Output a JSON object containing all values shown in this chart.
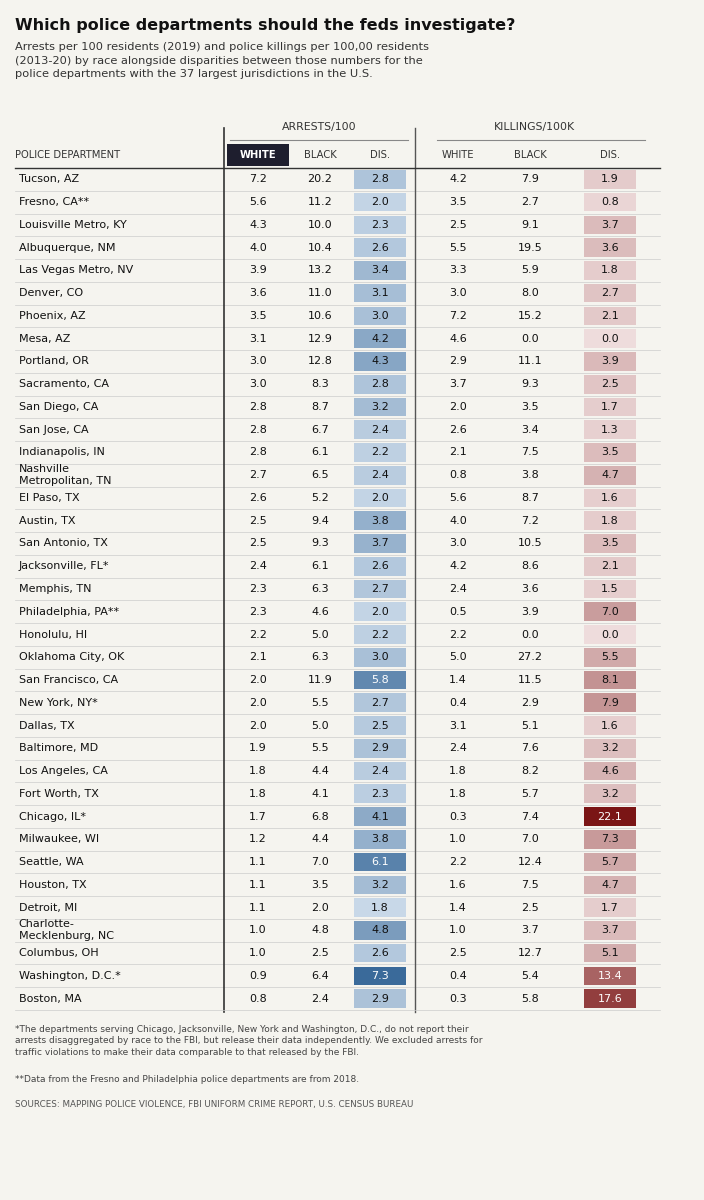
{
  "title": "Which police departments should the feds investigate?",
  "subtitle": "Arrests per 100 residents (2019) and police killings per 100,00 residents\n(2013-20) by race alongside disparities between those numbers for the\npolice departments with the 37 largest jurisdictions in the U.S.",
  "col_header_group1": "ARRESTS/100",
  "col_header_group2": "KILLINGS/100K",
  "row_label": "POLICE DEPARTMENT",
  "footnote1": "*The departments serving Chicago, Jacksonville, New York and Washington, D.C., do not report their\narrests disaggregated by race to the FBI, but release their data independently. We excluded arrests for\ntraffic violations to make their data comparable to that released by the FBI.",
  "footnote2": "**Data from the Fresno and Philadelphia police departments are from 2018.",
  "sources": "SOURCES: MAPPING POLICE VIOLENCE, FBI UNIFORM CRIME REPORT, U.S. CENSUS BUREAU",
  "departments": [
    "Tucson, AZ",
    "Fresno, CA**",
    "Louisville Metro, KY",
    "Albuquerque, NM",
    "Las Vegas Metro, NV",
    "Denver, CO",
    "Phoenix, AZ",
    "Mesa, AZ",
    "Portland, OR",
    "Sacramento, CA",
    "San Diego, CA",
    "San Jose, CA",
    "Indianapolis, IN",
    "Nashville\nMetropolitan, TN",
    "El Paso, TX",
    "Austin, TX",
    "San Antonio, TX",
    "Jacksonville, FL*",
    "Memphis, TN",
    "Philadelphia, PA**",
    "Honolulu, HI",
    "Oklahoma City, OK",
    "San Francisco, CA",
    "New York, NY*",
    "Dallas, TX",
    "Baltimore, MD",
    "Los Angeles, CA",
    "Fort Worth, TX",
    "Chicago, IL*",
    "Milwaukee, WI",
    "Seattle, WA",
    "Houston, TX",
    "Detroit, MI",
    "Charlotte-\nMecklenburg, NC",
    "Columbus, OH",
    "Washington, D.C.*",
    "Boston, MA"
  ],
  "arrests_white": [
    7.2,
    5.6,
    4.3,
    4.0,
    3.9,
    3.6,
    3.5,
    3.1,
    3.0,
    3.0,
    2.8,
    2.8,
    2.8,
    2.7,
    2.6,
    2.5,
    2.5,
    2.4,
    2.3,
    2.3,
    2.2,
    2.1,
    2.0,
    2.0,
    2.0,
    1.9,
    1.8,
    1.8,
    1.7,
    1.2,
    1.1,
    1.1,
    1.1,
    1.0,
    1.0,
    0.9,
    0.8
  ],
  "arrests_black": [
    20.2,
    11.2,
    10.0,
    10.4,
    13.2,
    11.0,
    10.6,
    12.9,
    12.8,
    8.3,
    8.7,
    6.7,
    6.1,
    6.5,
    5.2,
    9.4,
    9.3,
    6.1,
    6.3,
    4.6,
    5.0,
    6.3,
    11.9,
    5.5,
    5.0,
    5.5,
    4.4,
    4.1,
    6.8,
    4.4,
    7.0,
    3.5,
    2.0,
    4.8,
    2.5,
    6.4,
    2.4
  ],
  "arrests_dis": [
    2.8,
    2.0,
    2.3,
    2.6,
    3.4,
    3.1,
    3.0,
    4.2,
    4.3,
    2.8,
    3.2,
    2.4,
    2.2,
    2.4,
    2.0,
    3.8,
    3.7,
    2.6,
    2.7,
    2.0,
    2.2,
    3.0,
    5.8,
    2.7,
    2.5,
    2.9,
    2.4,
    2.3,
    4.1,
    3.8,
    6.1,
    3.2,
    1.8,
    4.8,
    2.6,
    7.3,
    2.9
  ],
  "killings_white": [
    4.2,
    3.5,
    2.5,
    5.5,
    3.3,
    3.0,
    7.2,
    4.6,
    2.9,
    3.7,
    2.0,
    2.6,
    2.1,
    0.8,
    5.6,
    4.0,
    3.0,
    4.2,
    2.4,
    0.5,
    2.2,
    5.0,
    1.4,
    0.4,
    3.1,
    2.4,
    1.8,
    1.8,
    0.3,
    1.0,
    2.2,
    1.6,
    1.4,
    1.0,
    2.5,
    0.4,
    0.3
  ],
  "killings_black": [
    7.9,
    2.7,
    9.1,
    19.5,
    5.9,
    8.0,
    15.2,
    0.0,
    11.1,
    9.3,
    3.5,
    3.4,
    7.5,
    3.8,
    8.7,
    7.2,
    10.5,
    8.6,
    3.6,
    3.9,
    0.0,
    27.2,
    11.5,
    2.9,
    5.1,
    7.6,
    8.2,
    5.7,
    7.4,
    7.0,
    12.4,
    7.5,
    2.5,
    3.7,
    12.7,
    5.4,
    5.8
  ],
  "killings_dis": [
    1.9,
    0.8,
    3.7,
    3.6,
    1.8,
    2.7,
    2.1,
    0.0,
    3.9,
    2.5,
    1.7,
    1.3,
    3.5,
    4.7,
    1.6,
    1.8,
    3.5,
    2.1,
    1.5,
    7.0,
    0.0,
    5.5,
    8.1,
    7.9,
    1.6,
    3.2,
    4.6,
    3.2,
    22.1,
    7.3,
    5.7,
    4.7,
    1.7,
    3.7,
    5.1,
    13.4,
    17.6
  ],
  "bg_color": "#f5f4ef",
  "header_dark_bg": "#1e1e2e",
  "arrests_dis_vmin": 1.8,
  "arrests_dis_vmax": 7.3,
  "arrests_dis_col_low": "#c8d8e8",
  "arrests_dis_col_high": "#3a6a9a",
  "killings_dis_vmin": 0.0,
  "killings_dis_vmax": 22.1,
  "killings_dis_col_low": "#eedcdc",
  "killings_dis_col_high": "#7a1515"
}
